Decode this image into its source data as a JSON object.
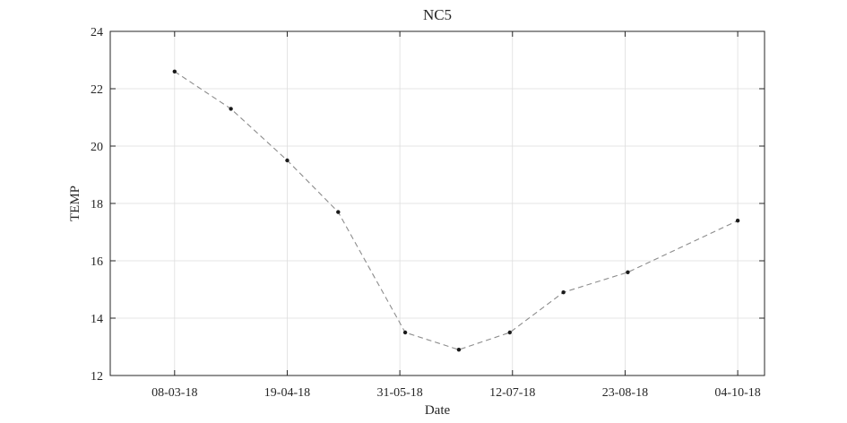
{
  "chart_data": {
    "type": "line",
    "title": "NC5",
    "xlabel": "Date",
    "ylabel": "TEMP",
    "ylim": [
      12,
      24
    ],
    "xlim": [
      "2018-02-12",
      "2018-10-14"
    ],
    "yticks": [
      12,
      14,
      16,
      18,
      20,
      22,
      24
    ],
    "xticks": [
      {
        "date": "2018-03-08",
        "label": "08-03-18"
      },
      {
        "date": "2018-04-19",
        "label": "19-04-18"
      },
      {
        "date": "2018-05-31",
        "label": "31-05-18"
      },
      {
        "date": "2018-07-12",
        "label": "12-07-18"
      },
      {
        "date": "2018-08-23",
        "label": "23-08-18"
      },
      {
        "date": "2018-10-04",
        "label": "04-10-18"
      }
    ],
    "grid": true,
    "series": [
      {
        "x": [
          "2018-03-08",
          "2018-03-29",
          "2018-04-19",
          "2018-05-08",
          "2018-06-02",
          "2018-06-22",
          "2018-07-11",
          "2018-07-31",
          "2018-08-24",
          "2018-10-04"
        ],
        "y": [
          22.6,
          21.3,
          19.5,
          17.7,
          13.5,
          12.9,
          13.5,
          14.9,
          15.6,
          17.4
        ]
      }
    ],
    "colors": {
      "line": "#8c8c8c",
      "marker": "#1a1a1a",
      "grid": "#dedede",
      "axis": "#262626"
    }
  }
}
